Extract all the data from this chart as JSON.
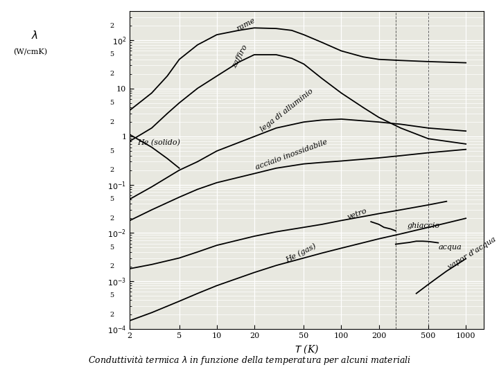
{
  "xlabel": "T (K)",
  "caption": "Conduttività termica λ in funzione della temperatura per alcuni materiali",
  "xlim": [
    2,
    1400
  ],
  "ylim": [
    0.0001,
    400
  ],
  "curves": {
    "rame": {
      "T": [
        2,
        3,
        4,
        5,
        7,
        10,
        15,
        20,
        30,
        40,
        50,
        70,
        100,
        150,
        200,
        300,
        500,
        1000
      ],
      "lam": [
        3.5,
        8,
        18,
        40,
        80,
        130,
        160,
        180,
        175,
        160,
        130,
        90,
        60,
        45,
        40,
        38,
        36,
        34
      ]
    },
    "zaffiro": {
      "T": [
        2,
        3,
        4,
        5,
        7,
        10,
        15,
        20,
        30,
        40,
        50,
        70,
        100,
        150,
        200,
        300,
        500,
        1000
      ],
      "lam": [
        0.8,
        1.5,
        3,
        5,
        10,
        18,
        35,
        50,
        50,
        42,
        32,
        16,
        8,
        4,
        2.5,
        1.5,
        0.9,
        0.7
      ]
    },
    "He_solido": {
      "T": [
        2,
        3,
        4,
        5
      ],
      "lam": [
        1.1,
        0.6,
        0.35,
        0.22
      ]
    },
    "lega_alluminio": {
      "T": [
        2,
        3,
        5,
        7,
        10,
        20,
        30,
        50,
        70,
        100,
        200,
        300,
        500,
        1000
      ],
      "lam": [
        0.05,
        0.09,
        0.2,
        0.3,
        0.5,
        1.0,
        1.5,
        2.0,
        2.2,
        2.3,
        2.0,
        1.8,
        1.5,
        1.3
      ]
    },
    "acciaio_inossidabile": {
      "T": [
        2,
        3,
        5,
        7,
        10,
        20,
        30,
        50,
        70,
        100,
        200,
        300,
        500,
        1000
      ],
      "lam": [
        0.018,
        0.03,
        0.055,
        0.08,
        0.11,
        0.17,
        0.22,
        0.27,
        0.29,
        0.31,
        0.36,
        0.4,
        0.46,
        0.54
      ]
    },
    "ghiaccio": {
      "T": [
        173,
        200,
        220,
        250,
        273
      ],
      "lam": [
        0.017,
        0.015,
        0.013,
        0.012,
        0.011
      ]
    },
    "acqua": {
      "T": [
        273,
        300,
        350,
        400,
        450,
        500,
        550,
        600
      ],
      "lam": [
        0.0058,
        0.006,
        0.0063,
        0.0067,
        0.0067,
        0.0066,
        0.0064,
        0.0062
      ]
    },
    "vetro": {
      "T": [
        2,
        3,
        5,
        7,
        10,
        20,
        30,
        50,
        70,
        100,
        200,
        300,
        500,
        700
      ],
      "lam": [
        0.0018,
        0.0022,
        0.003,
        0.004,
        0.0055,
        0.0085,
        0.0105,
        0.013,
        0.015,
        0.018,
        0.025,
        0.03,
        0.038,
        0.045
      ]
    },
    "He_gas": {
      "T": [
        2,
        3,
        5,
        7,
        10,
        20,
        30,
        50,
        70,
        100,
        200,
        300,
        500,
        700,
        1000
      ],
      "lam": [
        0.00015,
        0.00022,
        0.00038,
        0.00055,
        0.0008,
        0.0015,
        0.0021,
        0.003,
        0.0038,
        0.0048,
        0.0075,
        0.0095,
        0.013,
        0.016,
        0.02
      ]
    },
    "vapor_acqua": {
      "T": [
        400,
        500,
        600,
        700,
        800,
        1000
      ],
      "lam": [
        0.00055,
        0.00085,
        0.0012,
        0.0016,
        0.002,
        0.0029
      ]
    }
  }
}
